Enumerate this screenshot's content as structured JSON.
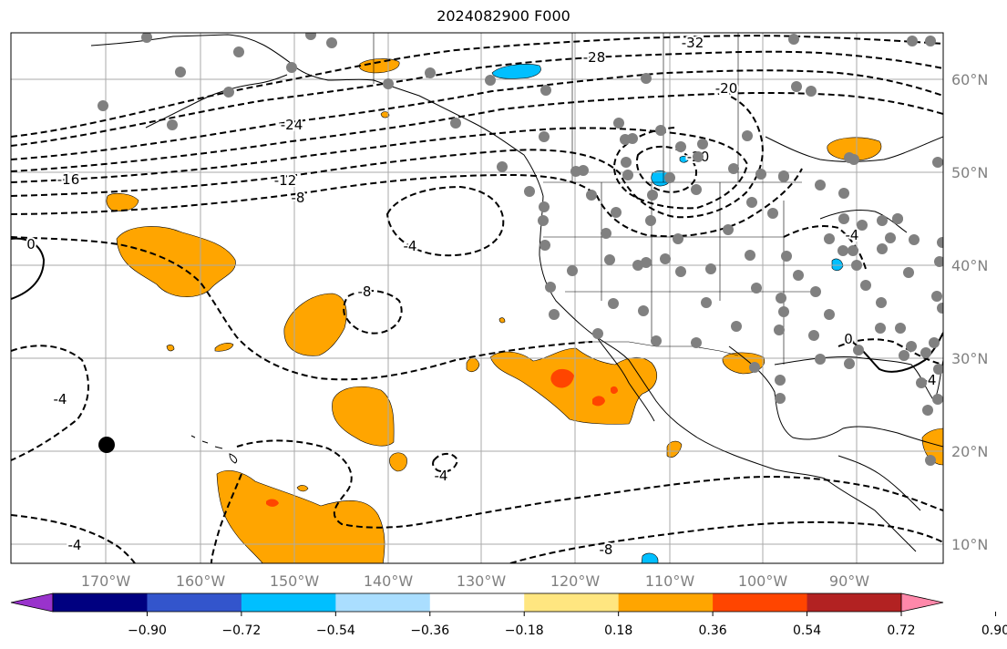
{
  "title": "2024082900 F000",
  "map": {
    "lon_range": [
      -180,
      -80
    ],
    "lat_range": [
      8,
      65
    ],
    "lon_ticks": [
      "170°W",
      "160°W",
      "150°W",
      "140°W",
      "130°W",
      "120°W",
      "110°W",
      "100°W",
      "90°W"
    ],
    "lat_ticks": [
      "10°N",
      "20°N",
      "30°N",
      "40°N",
      "50°N",
      "60°N"
    ],
    "contour_labels": [
      "-32",
      "-28",
      "-24",
      "-20",
      "-16",
      "-12",
      "-8",
      "-20",
      "-4",
      "0",
      "-4",
      "-8",
      "-4",
      "-4",
      "-4",
      "-8",
      "0",
      "-4"
    ],
    "station_marker_color": "#808080",
    "highlight_marker_color": "#000000"
  },
  "colorbar": {
    "colors": [
      "#9933cc",
      "#000080",
      "#3355cc",
      "#00bfff",
      "#aadeff",
      "#ffffff",
      "#ffe680",
      "#ffa500",
      "#ff4500",
      "#b22222",
      "#ff88aa"
    ],
    "tick_labels": [
      "−0.90",
      "−0.72",
      "−0.54",
      "−0.36",
      "−0.18",
      "0.18",
      "0.36",
      "0.54",
      "0.72",
      "0.90"
    ]
  }
}
